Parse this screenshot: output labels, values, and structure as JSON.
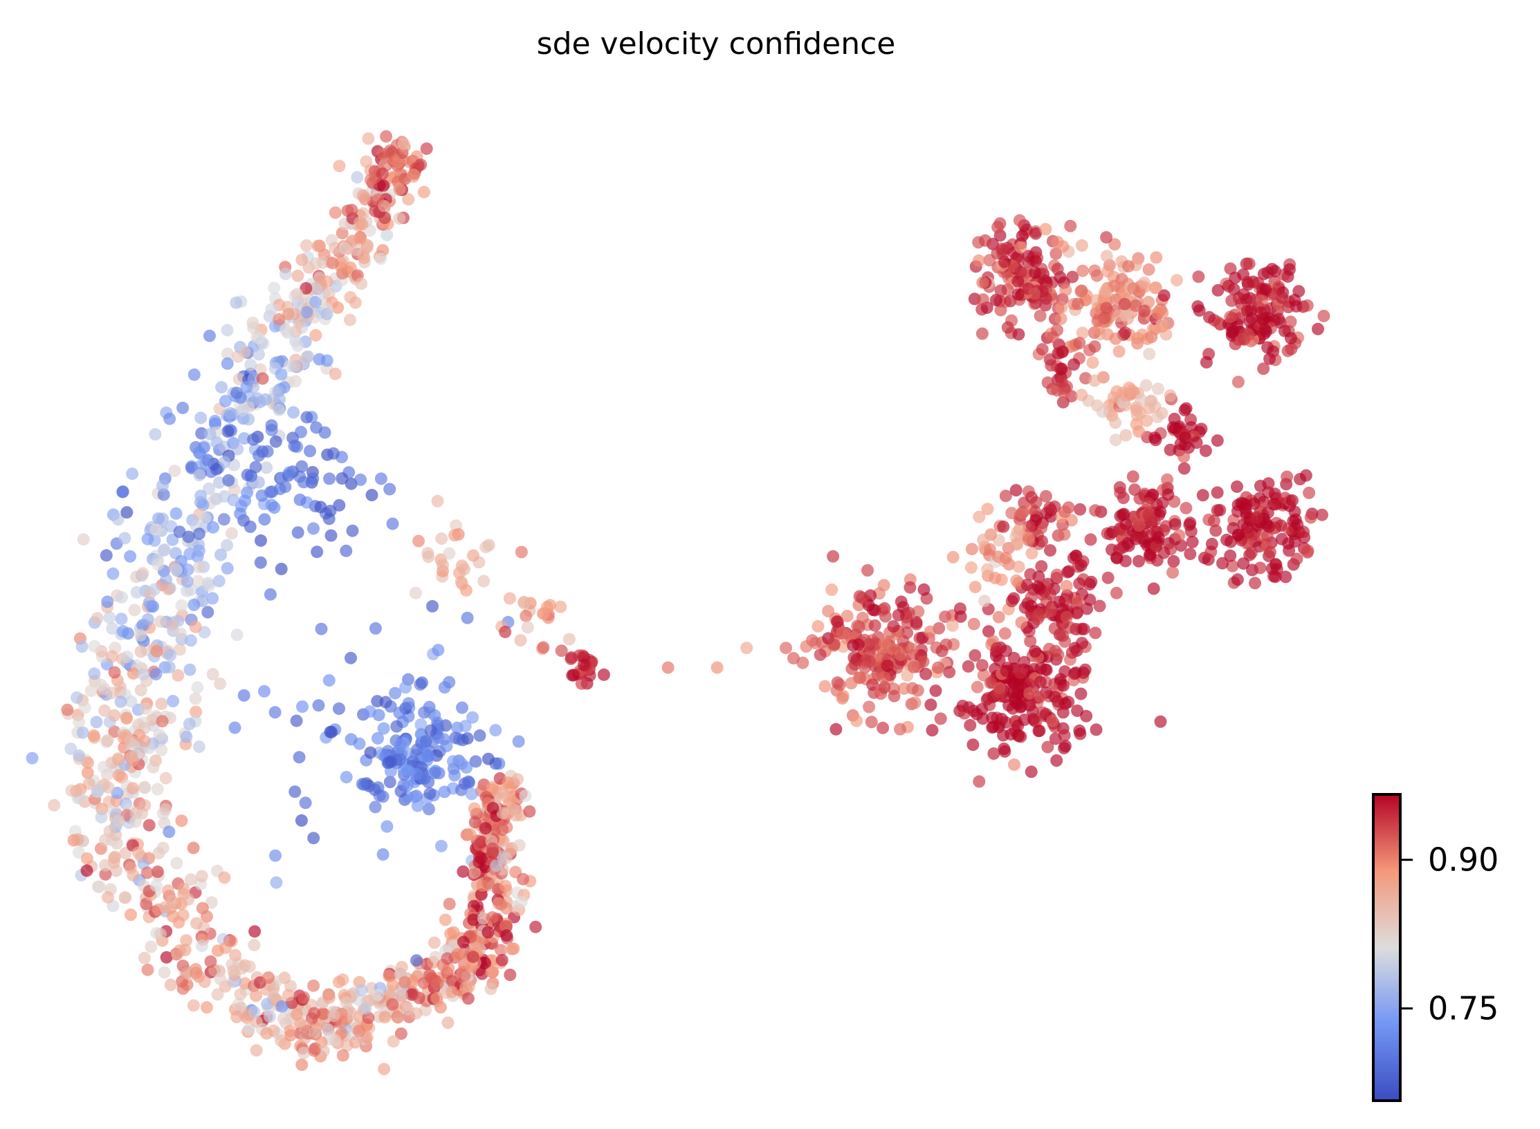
{
  "chart_data": {
    "type": "scatter",
    "title": "sde velocity confidence",
    "xlabel": "",
    "ylabel": "",
    "xlim": [
      0,
      130
    ],
    "ylim": [
      0,
      97
    ],
    "grid": false,
    "axes_visible": false,
    "colormap": "coolwarm",
    "colormap_stops": [
      "#3b4cc0",
      "#7396f5",
      "#dddddd",
      "#f4987a",
      "#b40426"
    ],
    "colorbar": {
      "range": [
        0.657,
        0.966
      ],
      "ticks": [
        0.75,
        0.9
      ],
      "tick_labels": [
        "0.75",
        "0.90"
      ],
      "placement": "bottom-right"
    },
    "arc_path": [
      {
        "x": 33,
        "y": 93.5,
        "value": 0.92,
        "spread": 2.5
      },
      {
        "x": 29,
        "y": 85.5,
        "value": 0.88,
        "spread": 3
      },
      {
        "x": 24,
        "y": 78.5,
        "value": 0.83,
        "spread": 4
      },
      {
        "x": 19,
        "y": 70.5,
        "value": 0.77,
        "spread": 5.5
      },
      {
        "x": 15,
        "y": 62.5,
        "value": 0.74,
        "spread": 6.5
      },
      {
        "x": 11,
        "y": 54.5,
        "value": 0.76,
        "spread": 6.5
      },
      {
        "x": 8,
        "y": 46.5,
        "value": 0.8,
        "spread": 6
      },
      {
        "x": 5,
        "y": 38.5,
        "value": 0.82,
        "spread": 5.5
      },
      {
        "x": 4,
        "y": 30.5,
        "value": 0.84,
        "spread": 5.5
      },
      {
        "x": 5,
        "y": 22.5,
        "value": 0.85,
        "spread": 5.5
      },
      {
        "x": 9,
        "y": 14.5,
        "value": 0.86,
        "spread": 5.5
      },
      {
        "x": 16,
        "y": 7.5,
        "value": 0.86,
        "spread": 5
      },
      {
        "x": 24,
        "y": 3.5,
        "value": 0.87,
        "spread": 4.5
      },
      {
        "x": 32,
        "y": 6.5,
        "value": 0.86,
        "spread": 4
      },
      {
        "x": 39,
        "y": 9.5,
        "value": 0.9,
        "spread": 3.5
      },
      {
        "x": 42,
        "y": 14.5,
        "value": 0.91,
        "spread": 3
      },
      {
        "x": 42,
        "y": 22.5,
        "value": 0.9,
        "spread": 2
      },
      {
        "x": 43,
        "y": 28.5,
        "value": 0.88,
        "spread": 2
      }
    ],
    "arc_points": 1400,
    "clusters": [
      {
        "x": 35,
        "y": 31.5,
        "r": 5.5,
        "value": 0.71,
        "n": 130
      },
      {
        "x": 30,
        "y": 33,
        "r": 13,
        "value": 0.7,
        "n": 60
      },
      {
        "x": 23,
        "y": 59,
        "r": 6,
        "value": 0.69,
        "n": 60
      },
      {
        "x": 38,
        "y": 52,
        "r": 4,
        "value": 0.86,
        "n": 25
      },
      {
        "x": 46,
        "y": 45,
        "r": 4,
        "value": 0.88,
        "n": 22
      },
      {
        "x": 51,
        "y": 40.5,
        "r": 2,
        "value": 0.95,
        "n": 22
      },
      {
        "x": 60,
        "y": 40.5,
        "r": 0,
        "value": 0.93,
        "n": 1
      },
      {
        "x": 65,
        "y": 40.5,
        "r": 0,
        "value": 0.92,
        "n": 1
      },
      {
        "x": 68,
        "y": 42.5,
        "r": 0,
        "value": 0.91,
        "n": 1
      },
      {
        "x": 72,
        "y": 42.5,
        "r": 0,
        "value": 0.91,
        "n": 1
      },
      {
        "x": 75,
        "y": 43,
        "r": 0,
        "value": 0.9,
        "n": 1
      },
      {
        "x": 82,
        "y": 42,
        "r": 6,
        "value": 0.93,
        "n": 200
      },
      {
        "x": 96,
        "y": 38,
        "r": 6,
        "value": 0.965,
        "n": 200
      },
      {
        "x": 100,
        "y": 47,
        "r": 4,
        "value": 0.96,
        "n": 90
      },
      {
        "x": 98,
        "y": 56,
        "r": 3,
        "value": 0.94,
        "n": 40
      },
      {
        "x": 109,
        "y": 55,
        "r": 4,
        "value": 0.965,
        "n": 110
      },
      {
        "x": 121,
        "y": 54,
        "r": 5,
        "value": 0.965,
        "n": 130
      },
      {
        "x": 112,
        "y": 64,
        "r": 2.5,
        "value": 0.965,
        "n": 35
      },
      {
        "x": 96,
        "y": 80.5,
        "r": 4.5,
        "value": 0.94,
        "n": 130
      },
      {
        "x": 106,
        "y": 77.5,
        "r": 5,
        "value": 0.9,
        "n": 130
      },
      {
        "x": 120,
        "y": 76.5,
        "r": 4.5,
        "value": 0.96,
        "n": 130
      },
      {
        "x": 100,
        "y": 71,
        "r": 2.5,
        "value": 0.94,
        "n": 30
      },
      {
        "x": 107,
        "y": 67,
        "r": 3,
        "value": 0.86,
        "n": 45
      },
      {
        "x": 94,
        "y": 52,
        "r": 4,
        "value": 0.88,
        "n": 35
      }
    ]
  }
}
